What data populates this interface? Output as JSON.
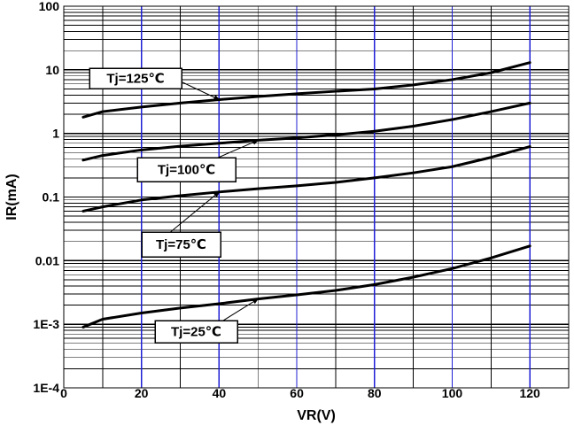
{
  "chart_data": {
    "type": "line",
    "xlabel": "VR(V)",
    "ylabel": "IR(mA)",
    "xlim": [
      0,
      130
    ],
    "ylim": [
      0.0001,
      100
    ],
    "yscale": "log",
    "grid": true,
    "x_ticks": [
      {
        "value": 0,
        "label": "0"
      },
      {
        "value": 20,
        "label": "20"
      },
      {
        "value": 40,
        "label": "40"
      },
      {
        "value": 60,
        "label": "60"
      },
      {
        "value": 80,
        "label": "80"
      },
      {
        "value": 100,
        "label": "100"
      },
      {
        "value": 120,
        "label": "120"
      }
    ],
    "y_ticks": [
      {
        "value": 100,
        "label": "100"
      },
      {
        "value": 10,
        "label": "10"
      },
      {
        "value": 1,
        "label": "1"
      },
      {
        "value": 0.1,
        "label": "0.1"
      },
      {
        "value": 0.01,
        "label": "0.01"
      },
      {
        "value": 0.001,
        "label": "1E-3"
      },
      {
        "value": 0.0001,
        "label": "1E-4"
      }
    ],
    "colors": {
      "major_vertical_grid": "#1f1fd6",
      "minor_vertical_grid": "#000000",
      "horizontal_grid": "#000000",
      "series": "#000000"
    },
    "series": [
      {
        "name": "Tj=125℃",
        "x": [
          5,
          10,
          20,
          30,
          40,
          50,
          60,
          70,
          80,
          90,
          100,
          110,
          120
        ],
        "values": [
          1.8,
          2.2,
          2.6,
          3.0,
          3.4,
          3.8,
          4.2,
          4.6,
          5.0,
          5.8,
          7.0,
          9.0,
          13.0
        ]
      },
      {
        "name": "Tj=100℃",
        "x": [
          5,
          10,
          20,
          30,
          40,
          50,
          60,
          70,
          80,
          90,
          100,
          110,
          120
        ],
        "values": [
          0.38,
          0.45,
          0.55,
          0.63,
          0.7,
          0.78,
          0.85,
          0.95,
          1.08,
          1.3,
          1.65,
          2.2,
          3.0
        ]
      },
      {
        "name": "Tj=75℃",
        "x": [
          5,
          10,
          20,
          30,
          40,
          50,
          60,
          70,
          80,
          90,
          100,
          110,
          120
        ],
        "values": [
          0.06,
          0.07,
          0.09,
          0.105,
          0.12,
          0.135,
          0.15,
          0.17,
          0.2,
          0.24,
          0.3,
          0.42,
          0.62
        ]
      },
      {
        "name": "Tj=25℃",
        "x": [
          5,
          10,
          20,
          30,
          40,
          50,
          60,
          70,
          80,
          90,
          100,
          110,
          120
        ],
        "values": [
          0.0009,
          0.0012,
          0.0015,
          0.0018,
          0.0021,
          0.0025,
          0.0029,
          0.0034,
          0.0042,
          0.0055,
          0.0075,
          0.011,
          0.017
        ]
      }
    ],
    "callouts": [
      {
        "label": "Tj=125℃",
        "target_x": 40,
        "target_y": 3.4
      },
      {
        "label": "Tj=100℃",
        "target_x": 50,
        "target_y": 0.78
      },
      {
        "label": "Tj=75℃",
        "target_x": 40,
        "target_y": 0.12
      },
      {
        "label": "Tj=25℃",
        "target_x": 50,
        "target_y": 0.0025
      }
    ]
  }
}
